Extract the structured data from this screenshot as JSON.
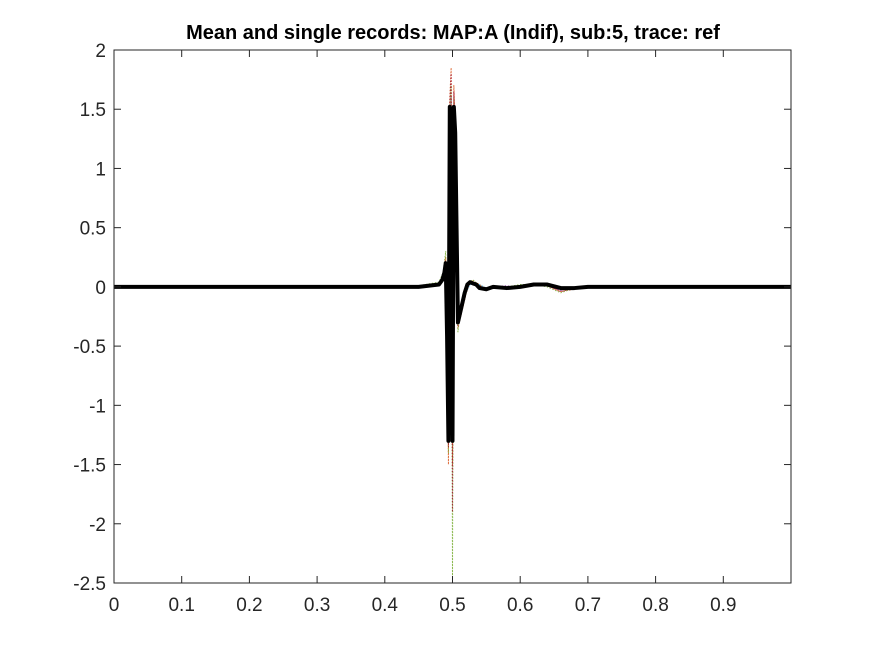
{
  "chart_data": {
    "type": "line",
    "title": "Mean and single records: MAP:A (Indif), sub:5, trace: ref",
    "xlabel": "",
    "ylabel": "",
    "xlim": [
      0,
      1
    ],
    "ylim": [
      -2.5,
      2
    ],
    "xticks": [
      0,
      0.1,
      0.2,
      0.3,
      0.4,
      0.5,
      0.6,
      0.7,
      0.8,
      0.9
    ],
    "xtick_labels": [
      "0",
      "0.1",
      "0.2",
      "0.3",
      "0.4",
      "0.5",
      "0.6",
      "0.7",
      "0.8",
      "0.9"
    ],
    "yticks": [
      2,
      1.5,
      1,
      0.5,
      0,
      -0.5,
      -1,
      -1.5,
      -2,
      -2.5
    ],
    "ytick_labels": [
      "2",
      "1.5",
      "1",
      "0.5",
      "0",
      "-0.5",
      "-1",
      "-1.5",
      "-2",
      "-2.5"
    ],
    "grid": false,
    "legend": "none",
    "series": [
      {
        "role": "mean",
        "color": "#000000",
        "x": [
          0,
          0.45,
          0.48,
          0.485,
          0.488,
          0.49,
          0.492,
          0.494,
          0.496,
          0.498,
          0.5,
          0.502,
          0.504,
          0.506,
          0.508,
          0.51,
          0.514,
          0.518,
          0.522,
          0.526,
          0.53,
          0.535,
          0.54,
          0.55,
          0.56,
          0.58,
          0.6,
          0.62,
          0.64,
          0.66,
          0.68,
          0.7,
          0.75,
          0.8,
          1.0
        ],
        "y": [
          0,
          0,
          0.02,
          0.06,
          0.12,
          0.2,
          -0.42,
          -1.3,
          1.52,
          1.45,
          -1.3,
          1.52,
          1.3,
          0.5,
          -0.3,
          -0.25,
          -0.15,
          -0.05,
          0.02,
          0.04,
          0.03,
          0.02,
          -0.01,
          -0.02,
          0.0,
          -0.01,
          0.0,
          0.02,
          0.02,
          -0.01,
          -0.01,
          0.0,
          0.0,
          0.0,
          0.0
        ]
      },
      {
        "role": "single-record",
        "color": "#d95319",
        "x": [
          0,
          0.45,
          0.48,
          0.486,
          0.49,
          0.492,
          0.494,
          0.496,
          0.498,
          0.5,
          0.502,
          0.504,
          0.506,
          0.508,
          0.51,
          0.515,
          0.52,
          0.525,
          0.53,
          0.54,
          0.55,
          0.56,
          0.58,
          0.6,
          0.62,
          0.64,
          0.66,
          0.68,
          0.7,
          0.8,
          1.0
        ],
        "y": [
          0.01,
          0.0,
          0.03,
          0.1,
          0.25,
          -0.5,
          -1.5,
          1.6,
          1.85,
          -1.5,
          1.7,
          1.4,
          0.6,
          -0.35,
          -0.3,
          -0.18,
          -0.06,
          0.03,
          0.05,
          0.02,
          -0.02,
          0.0,
          -0.01,
          0.01,
          0.03,
          0.01,
          -0.04,
          -0.02,
          0.0,
          0.0,
          0.01
        ]
      },
      {
        "role": "single-record",
        "color": "#7e2f8e",
        "x": [
          0,
          0.45,
          0.48,
          0.486,
          0.49,
          0.492,
          0.494,
          0.496,
          0.498,
          0.5,
          0.502,
          0.504,
          0.506,
          0.508,
          0.51,
          0.515,
          0.52,
          0.525,
          0.53,
          0.54,
          0.55,
          0.56,
          0.58,
          0.6,
          0.62,
          0.64,
          0.66,
          0.68,
          0.7,
          0.8,
          1.0
        ],
        "y": [
          -0.01,
          0.0,
          0.02,
          0.08,
          0.18,
          -0.35,
          -1.2,
          1.4,
          1.6,
          -1.2,
          1.4,
          1.2,
          0.45,
          -0.28,
          -0.22,
          -0.12,
          -0.04,
          0.02,
          0.03,
          0.01,
          -0.03,
          0.0,
          0.01,
          -0.01,
          0.02,
          0.01,
          -0.03,
          0.0,
          0.01,
          0.0,
          -0.01
        ]
      },
      {
        "role": "single-record",
        "color": "#77ac30",
        "x": [
          0,
          0.45,
          0.48,
          0.486,
          0.49,
          0.492,
          0.494,
          0.496,
          0.498,
          0.5,
          0.502,
          0.504,
          0.506,
          0.508,
          0.51,
          0.515,
          0.52,
          0.525,
          0.53,
          0.54,
          0.55,
          0.56,
          0.58,
          0.6,
          0.62,
          0.64,
          0.66,
          0.68,
          0.7,
          0.8,
          1.0
        ],
        "y": [
          0.0,
          0.01,
          0.04,
          0.12,
          0.3,
          -0.6,
          -1.4,
          1.5,
          1.7,
          -2.5,
          1.6,
          1.35,
          0.55,
          -0.38,
          -0.28,
          -0.16,
          -0.05,
          0.04,
          0.06,
          0.01,
          -0.02,
          0.01,
          0.0,
          0.02,
          0.02,
          0.0,
          -0.05,
          -0.01,
          0.0,
          0.01,
          0.0
        ]
      },
      {
        "role": "single-record",
        "color": "#4dbeee",
        "x": [
          0,
          0.45,
          0.48,
          0.486,
          0.49,
          0.492,
          0.494,
          0.496,
          0.498,
          0.5,
          0.502,
          0.504,
          0.506,
          0.508,
          0.51,
          0.515,
          0.52,
          0.525,
          0.53,
          0.54,
          0.55,
          0.56,
          0.58,
          0.6,
          0.62,
          0.64,
          0.66,
          0.68,
          0.7,
          0.8,
          1.0
        ],
        "y": [
          0.01,
          -0.01,
          0.01,
          0.07,
          0.15,
          -0.4,
          -1.1,
          1.35,
          1.5,
          -1.25,
          1.45,
          1.25,
          0.5,
          -0.3,
          -0.24,
          -0.13,
          -0.05,
          0.01,
          0.03,
          0.02,
          -0.01,
          -0.01,
          0.0,
          0.0,
          0.03,
          0.02,
          -0.02,
          0.0,
          -0.01,
          0.0,
          0.0
        ]
      },
      {
        "role": "single-record",
        "color": "#a2142f",
        "x": [
          0,
          0.45,
          0.48,
          0.486,
          0.49,
          0.492,
          0.494,
          0.496,
          0.498,
          0.5,
          0.502,
          0.504,
          0.506,
          0.508,
          0.51,
          0.515,
          0.52,
          0.525,
          0.53,
          0.54,
          0.55,
          0.56,
          0.58,
          0.6,
          0.62,
          0.64,
          0.66,
          0.68,
          0.7,
          0.8,
          1.0
        ],
        "y": [
          0.0,
          0.0,
          0.03,
          0.09,
          0.22,
          -0.45,
          -1.35,
          1.55,
          1.8,
          -1.9,
          1.65,
          1.3,
          0.52,
          -0.33,
          -0.27,
          -0.15,
          -0.05,
          0.03,
          0.04,
          0.01,
          -0.02,
          0.0,
          -0.01,
          0.01,
          0.02,
          0.01,
          -0.04,
          -0.01,
          0.01,
          0.0,
          0.0
        ]
      }
    ]
  }
}
